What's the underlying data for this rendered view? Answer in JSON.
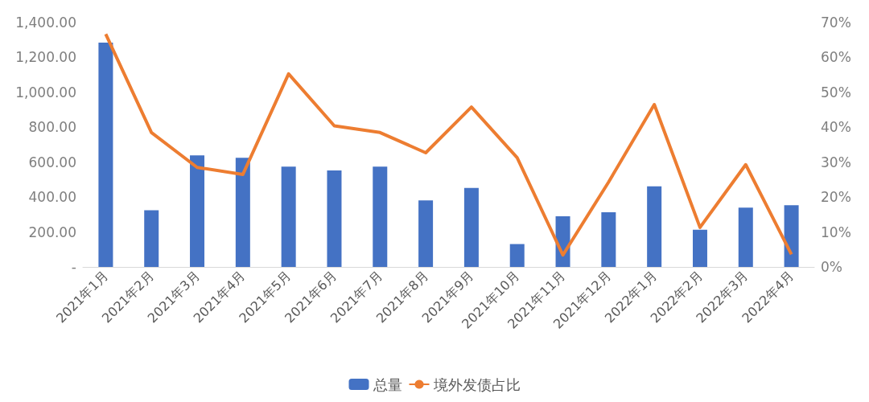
{
  "chart_data": {
    "type": "bar",
    "categories": [
      "2021年1月",
      "2021年2月",
      "2021年3月",
      "2021年4月",
      "2021年5月",
      "2021年6月",
      "2021年7月",
      "2021年8月",
      "2021年9月",
      "2021年10月",
      "2021年11月",
      "2021年12月",
      "2022年1月",
      "2022年2月",
      "2022年3月",
      "2022年4月"
    ],
    "series": [
      {
        "name": "总量",
        "color": "#4472c4",
        "values": [
          1285,
          325,
          639,
          625,
          575,
          553,
          575,
          381,
          453,
          131,
          290,
          313,
          462,
          213,
          340,
          353
        ]
      },
      {
        "name": "境外发债占比",
        "type": "line",
        "axis": "y2",
        "color": "#ed7d31",
        "values": [
          66.7,
          38.5,
          28.5,
          26.5,
          55.3,
          40.4,
          38.5,
          32.7,
          45.8,
          31.3,
          3.4,
          24.3,
          46.5,
          11.3,
          29.3,
          3.6
        ]
      }
    ],
    "ylim": [
      0,
      1400
    ],
    "yticks": [
      {
        "value": 0,
        "label": "-"
      },
      {
        "value": 200,
        "label": "200.00"
      },
      {
        "value": 400,
        "label": "400.00"
      },
      {
        "value": 600,
        "label": "600.00"
      },
      {
        "value": 800,
        "label": "800.00"
      },
      {
        "value": 1000,
        "label": "1,000.00"
      },
      {
        "value": 1200,
        "label": "1,200.00"
      },
      {
        "value": 1400,
        "label": "1,400.00"
      }
    ],
    "y2lim": [
      0,
      70
    ],
    "y2ticks": [
      {
        "value": 0,
        "label": "0%"
      },
      {
        "value": 10,
        "label": "10%"
      },
      {
        "value": 20,
        "label": "20%"
      },
      {
        "value": 30,
        "label": "30%"
      },
      {
        "value": 40,
        "label": "40%"
      },
      {
        "value": 50,
        "label": "50%"
      },
      {
        "value": 60,
        "label": "60%"
      },
      {
        "value": 70,
        "label": "70%"
      }
    ],
    "grid": false,
    "legend": "bottom",
    "marker": "none"
  }
}
